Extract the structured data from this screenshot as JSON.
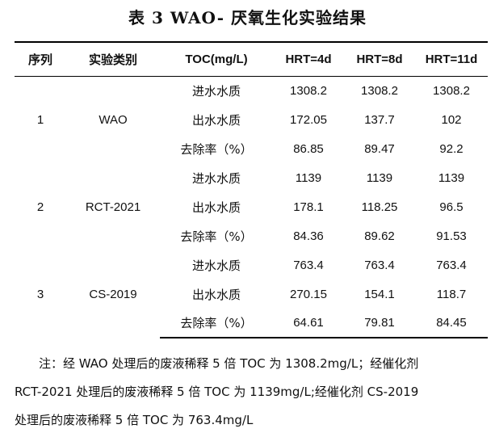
{
  "title": "表 3 WAO- 厌氧生化实验结果",
  "table": {
    "headers": [
      "序列",
      "实验类别",
      "TOC(mg/L)",
      "HRT=4d",
      "HRT=8d",
      "HRT=11d"
    ],
    "groups": [
      {
        "seq": "1",
        "category": "WAO",
        "rows": [
          {
            "metric": "进水水质",
            "v": [
              "1308.2",
              "1308.2",
              "1308.2"
            ]
          },
          {
            "metric": "出水水质",
            "v": [
              "172.05",
              "137.7",
              "102"
            ]
          },
          {
            "metric": "去除率（%）",
            "v": [
              "86.85",
              "89.47",
              "92.2"
            ]
          }
        ]
      },
      {
        "seq": "2",
        "category": "RCT-2021",
        "rows": [
          {
            "metric": "进水水质",
            "v": [
              "1139",
              "1139",
              "1139"
            ]
          },
          {
            "metric": "出水水质",
            "v": [
              "178.1",
              "118.25",
              "96.5"
            ]
          },
          {
            "metric": "去除率（%）",
            "v": [
              "84.36",
              "89.62",
              "91.53"
            ]
          }
        ]
      },
      {
        "seq": "3",
        "category": "CS-2019",
        "rows": [
          {
            "metric": "进水水质",
            "v": [
              "763.4",
              "763.4",
              "763.4"
            ]
          },
          {
            "metric": "出水水质",
            "v": [
              "270.15",
              "154.1",
              "118.7"
            ]
          },
          {
            "metric": "去除率（%）",
            "v": [
              "64.61",
              "79.81",
              "84.45"
            ]
          }
        ]
      }
    ]
  },
  "note": {
    "line1": "注：经 WAO 处理后的废液稀释 5 倍 TOC 为 1308.2mg/L；经催化剂",
    "line2": "RCT-2021 处理后的废液稀释 5 倍 TOC 为 1139mg/L;经催化剂 CS-2019",
    "line3": "处理后的废液稀释 5 倍 TOC 为 763.4mg/L"
  }
}
